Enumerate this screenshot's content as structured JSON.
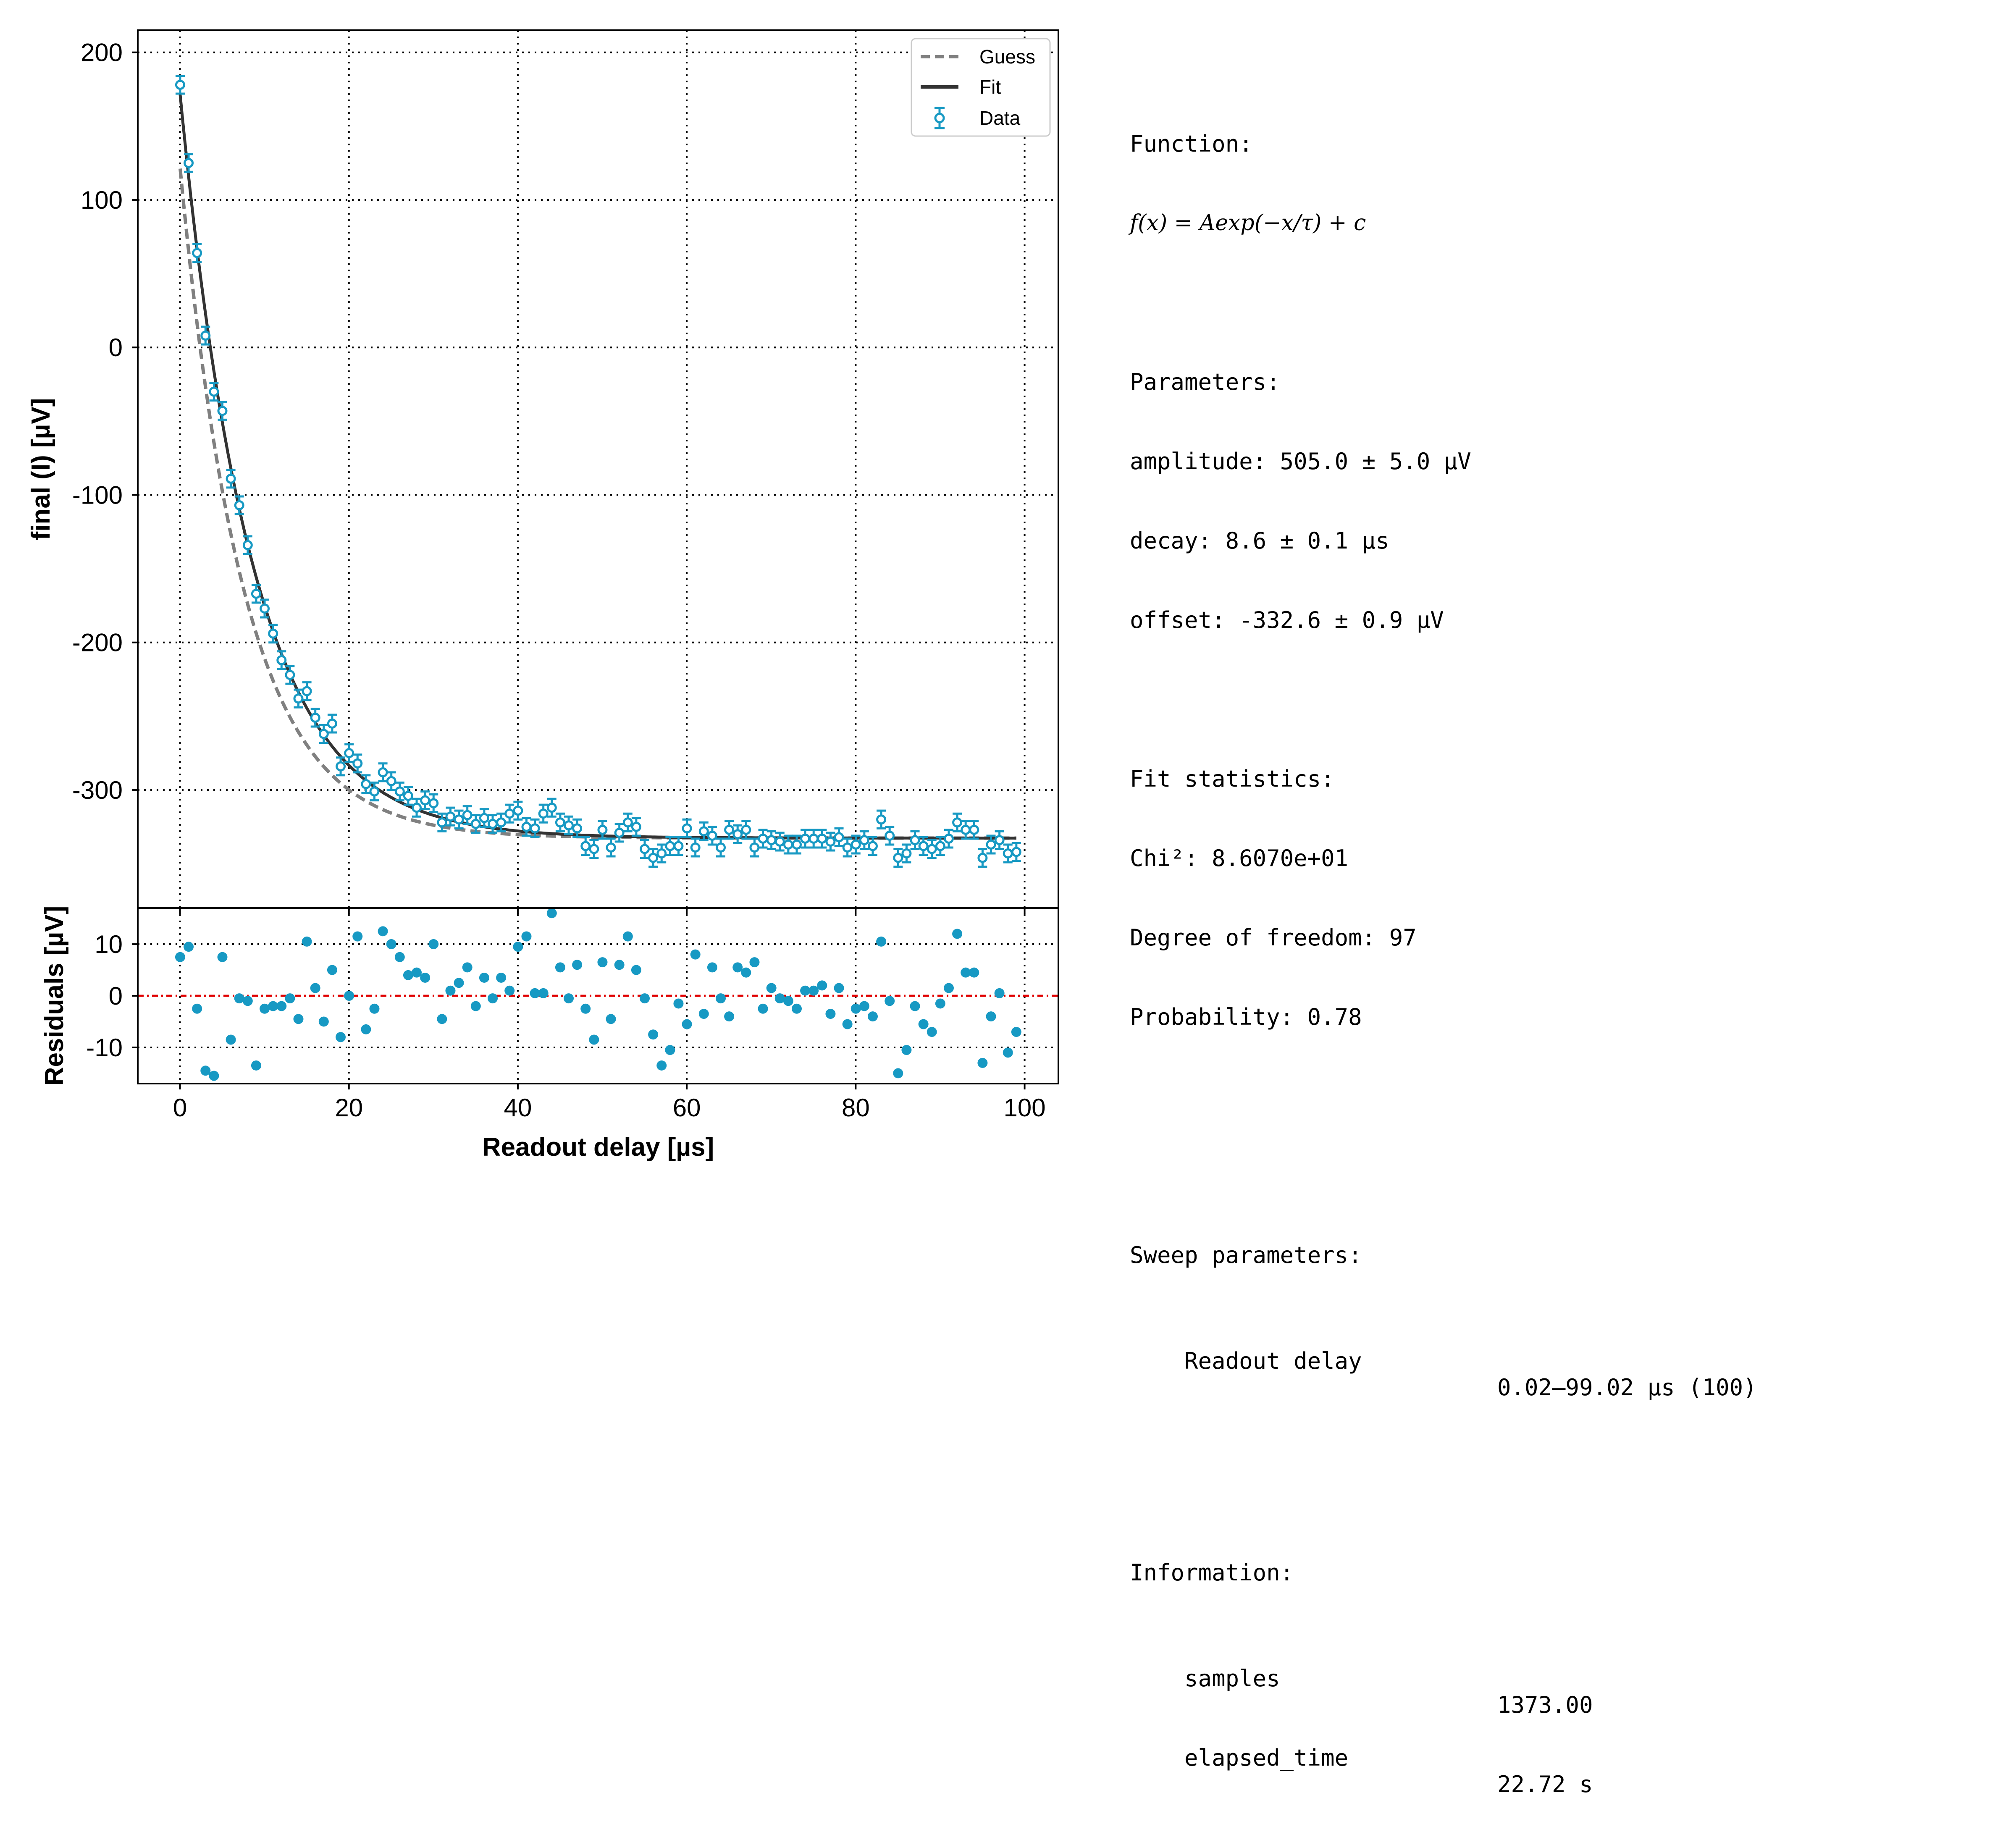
{
  "chart_data": [
    {
      "type": "scatter",
      "panel": "main",
      "ylabel": "final (I) [µV]",
      "xlim": [
        -5,
        104
      ],
      "ylim": [
        -380,
        215
      ],
      "yticks": [
        200,
        100,
        0,
        -100,
        -200,
        -300
      ],
      "ytick_labels": [
        "200",
        "100",
        "0",
        "-100",
        "-200",
        "-300"
      ],
      "xticks": [
        0,
        20,
        40,
        60,
        80,
        100
      ],
      "grid": true,
      "legend_position": "top-right",
      "legend": [
        "Guess",
        "Fit",
        "Data"
      ],
      "fit": {
        "amplitude": 505.0,
        "decay": 8.6,
        "offset": -332.6
      },
      "guess": {
        "amplitude": 455.0,
        "decay": 7.6,
        "offset": -332.6
      },
      "error_bar": 6,
      "series": [
        {
          "name": "Data",
          "x": [
            0.02,
            1.02,
            2.02,
            3.02,
            4.02,
            5.02,
            6.02,
            7.02,
            8.02,
            9.02,
            10.02,
            11.02,
            12.02,
            13.02,
            14.02,
            15.02,
            16.02,
            17.02,
            18.02,
            19.02,
            20.02,
            21.02,
            22.02,
            23.02,
            24.02,
            25.02,
            26.02,
            27.02,
            28.02,
            29.02,
            30.02,
            31.02,
            32.02,
            33.02,
            34.02,
            35.02,
            36.02,
            37.02,
            38.02,
            39.02,
            40.02,
            41.02,
            42.02,
            43.02,
            44.02,
            45.02,
            46.02,
            47.02,
            48.02,
            49.02,
            50.02,
            51.02,
            52.02,
            53.02,
            54.02,
            55.02,
            56.02,
            57.02,
            58.02,
            59.02,
            60.02,
            61.02,
            62.02,
            63.02,
            64.02,
            65.02,
            66.02,
            67.02,
            68.02,
            69.02,
            70.02,
            71.02,
            72.02,
            73.02,
            74.02,
            75.02,
            76.02,
            77.02,
            78.02,
            79.02,
            80.02,
            81.02,
            82.02,
            83.02,
            84.02,
            85.02,
            86.02,
            87.02,
            88.02,
            89.02,
            90.02,
            91.02,
            92.02,
            93.02,
            94.02,
            95.02,
            96.02,
            97.02,
            98.02,
            99.02
          ],
          "y": [
            178,
            125,
            64,
            8,
            -30,
            -43,
            -89,
            -107,
            -134,
            -167,
            -177,
            -194,
            -212,
            -222,
            -238,
            -233,
            -251,
            -262,
            -255,
            -284,
            -275,
            -282,
            -296,
            -301,
            -288,
            -294,
            -301,
            -304,
            -312,
            -307,
            -309,
            -322,
            -318,
            -320,
            -317,
            -323,
            -319,
            -323,
            -322,
            -316,
            -314,
            -325,
            -326,
            -316,
            -312,
            -322,
            -324,
            -326,
            -338,
            -340,
            -327,
            -339,
            -329,
            -322,
            -325,
            -340,
            -346,
            -343,
            -338,
            -338,
            -326,
            -339,
            -328,
            -331,
            -339,
            -327,
            -330,
            -327,
            -339,
            -333,
            -334,
            -335,
            -337,
            -337,
            -333,
            -333,
            -333,
            -335,
            -332,
            -339,
            -337,
            -334,
            -338,
            -320,
            -331,
            -346,
            -343,
            -334,
            -338,
            -340,
            -338,
            -333,
            -322,
            -327,
            -327,
            -346,
            -337,
            -334,
            -343,
            -342
          ]
        }
      ]
    },
    {
      "type": "scatter",
      "panel": "residuals",
      "xlabel": "Readout delay [µs]",
      "ylabel": "Residuals [µV]",
      "xlim": [
        -5,
        104
      ],
      "ylim": [
        -17,
        17
      ],
      "yticks": [
        10,
        0,
        -10
      ],
      "ytick_labels": [
        "10",
        "0",
        "-10"
      ],
      "xticks": [
        0,
        20,
        40,
        60,
        80,
        100
      ],
      "xtick_labels": [
        "0",
        "20",
        "40",
        "60",
        "80",
        "100"
      ],
      "grid": true,
      "zero_line": 0,
      "series": [
        {
          "x": [
            0.02,
            1.02,
            2.02,
            3.02,
            4.02,
            5.02,
            6.02,
            7.02,
            8.02,
            9.02,
            10.02,
            11.02,
            12.02,
            13.02,
            14.02,
            15.02,
            16.02,
            17.02,
            18.02,
            19.02,
            20.02,
            21.02,
            22.02,
            23.02,
            24.02,
            25.02,
            26.02,
            27.02,
            28.02,
            29.02,
            30.02,
            31.02,
            32.02,
            33.02,
            34.02,
            35.02,
            36.02,
            37.02,
            38.02,
            39.02,
            40.02,
            41.02,
            42.02,
            43.02,
            44.02,
            45.02,
            46.02,
            47.02,
            48.02,
            49.02,
            50.02,
            51.02,
            52.02,
            53.02,
            54.02,
            55.02,
            56.02,
            57.02,
            58.02,
            59.02,
            60.02,
            61.02,
            62.02,
            63.02,
            64.02,
            65.02,
            66.02,
            67.02,
            68.02,
            69.02,
            70.02,
            71.02,
            72.02,
            73.02,
            74.02,
            75.02,
            76.02,
            77.02,
            78.02,
            79.02,
            80.02,
            81.02,
            82.02,
            83.02,
            84.02,
            85.02,
            86.02,
            87.02,
            88.02,
            89.02,
            90.02,
            91.02,
            92.02,
            93.02,
            94.02,
            95.02,
            96.02,
            97.02,
            98.02,
            99.02
          ],
          "y": [
            7.5,
            9.5,
            -2.5,
            -14.5,
            -15.5,
            7.5,
            -8.5,
            -0.5,
            -1,
            -13.5,
            -2.5,
            -2,
            -2,
            -0.5,
            -4.5,
            10.5,
            1.5,
            -5,
            5,
            -8,
            0,
            11.5,
            -6.5,
            -2.5,
            12.5,
            10,
            7.5,
            4,
            4.5,
            3.5,
            10,
            -4.5,
            1,
            2.5,
            5.5,
            -2,
            3.5,
            -0.5,
            3.5,
            1,
            9.5,
            11.5,
            0.5,
            0.5,
            16,
            5.5,
            -0.5,
            6,
            -2.5,
            -8.5,
            6.5,
            -4.5,
            6,
            11.5,
            5,
            -0.5,
            -7.5,
            -13.5,
            -10.5,
            -1.5,
            -5.5,
            8,
            -3.5,
            5.5,
            -0.5,
            -4,
            5.5,
            4.5,
            6.5,
            -2.5,
            1.5,
            -0.5,
            -1,
            -2.5,
            1,
            1,
            2,
            -3.5,
            1.5,
            -5.5,
            -2.5,
            -2,
            -4,
            10.5,
            -1,
            -15,
            -10.5,
            -2,
            -5.5,
            -7,
            -1.5,
            1.5,
            12,
            4.5,
            4.5,
            -13,
            -4,
            0.5,
            -11,
            -7
          ]
        }
      ]
    }
  ],
  "colors": {
    "data": "#1799c3",
    "fit": "#333333",
    "guess": "#808080",
    "zero_line": "#e00000",
    "grid": "#000000"
  },
  "info": {
    "function_header": "Function:",
    "function_formula": "f(x) = Aexp(−x/τ) + c",
    "parameters_header": "Parameters:",
    "amplitude": "amplitude: 505.0 ± 5.0 µV",
    "decay": "decay: 8.6 ± 0.1 µs",
    "offset": "offset: -332.6 ± 0.9 µV",
    "stats_header": "Fit statistics:",
    "chi2": "Chi²: 8.6070e+01",
    "dof": "Degree of freedom: 97",
    "probability": "Probability: 0.78",
    "sweep_header": "Sweep parameters:",
    "sweep_name": "Readout delay",
    "sweep_value": "0.02–99.02 µs (100)",
    "information_header": "Information:",
    "samples_label": "samples",
    "samples_value": "1373.00",
    "elapsed_label": "elapsed_time",
    "elapsed_value": "22.72 s"
  }
}
